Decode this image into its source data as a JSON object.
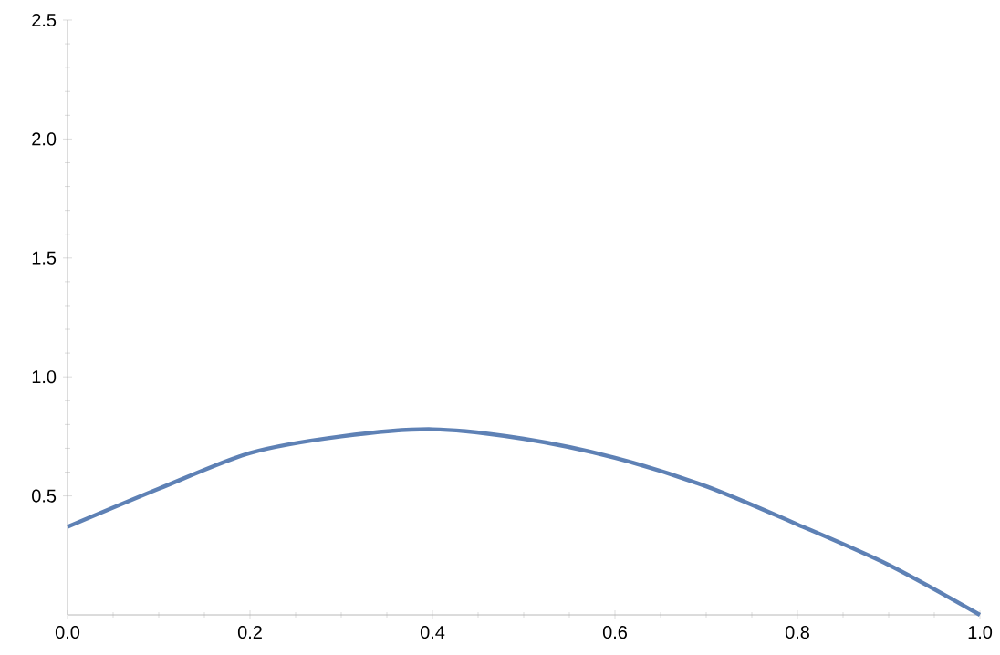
{
  "chart_data": {
    "type": "line",
    "x": [
      0,
      0.1,
      0.2,
      0.3,
      0.4,
      0.5,
      0.6,
      0.7,
      0.8,
      0.9,
      1.0
    ],
    "series": [
      {
        "color": "#5e81b5",
        "values": [
          0.37,
          0.53,
          0.68,
          0.75,
          0.78,
          0.74,
          0.66,
          0.54,
          0.38,
          0.21,
          0
        ]
      }
    ],
    "xlim": [
      0,
      1
    ],
    "ylim": [
      0,
      2.5
    ],
    "xticks": [
      {
        "value": 0,
        "label": "0.0"
      },
      {
        "value": 0.2,
        "label": "0.2"
      },
      {
        "value": 0.4,
        "label": "0.4"
      },
      {
        "value": 0.6,
        "label": "0.6"
      },
      {
        "value": 0.8,
        "label": "0.8"
      },
      {
        "value": 1,
        "label": "1.0"
      }
    ],
    "yticks": [
      {
        "value": 0.5,
        "label": "0.5"
      },
      {
        "value": 1,
        "label": "1.0"
      },
      {
        "value": 1.5,
        "label": "1.5"
      },
      {
        "value": 2,
        "label": "2.0"
      },
      {
        "value": 2.5,
        "label": "2.5"
      }
    ],
    "marker": "none",
    "line_style": "solid"
  }
}
